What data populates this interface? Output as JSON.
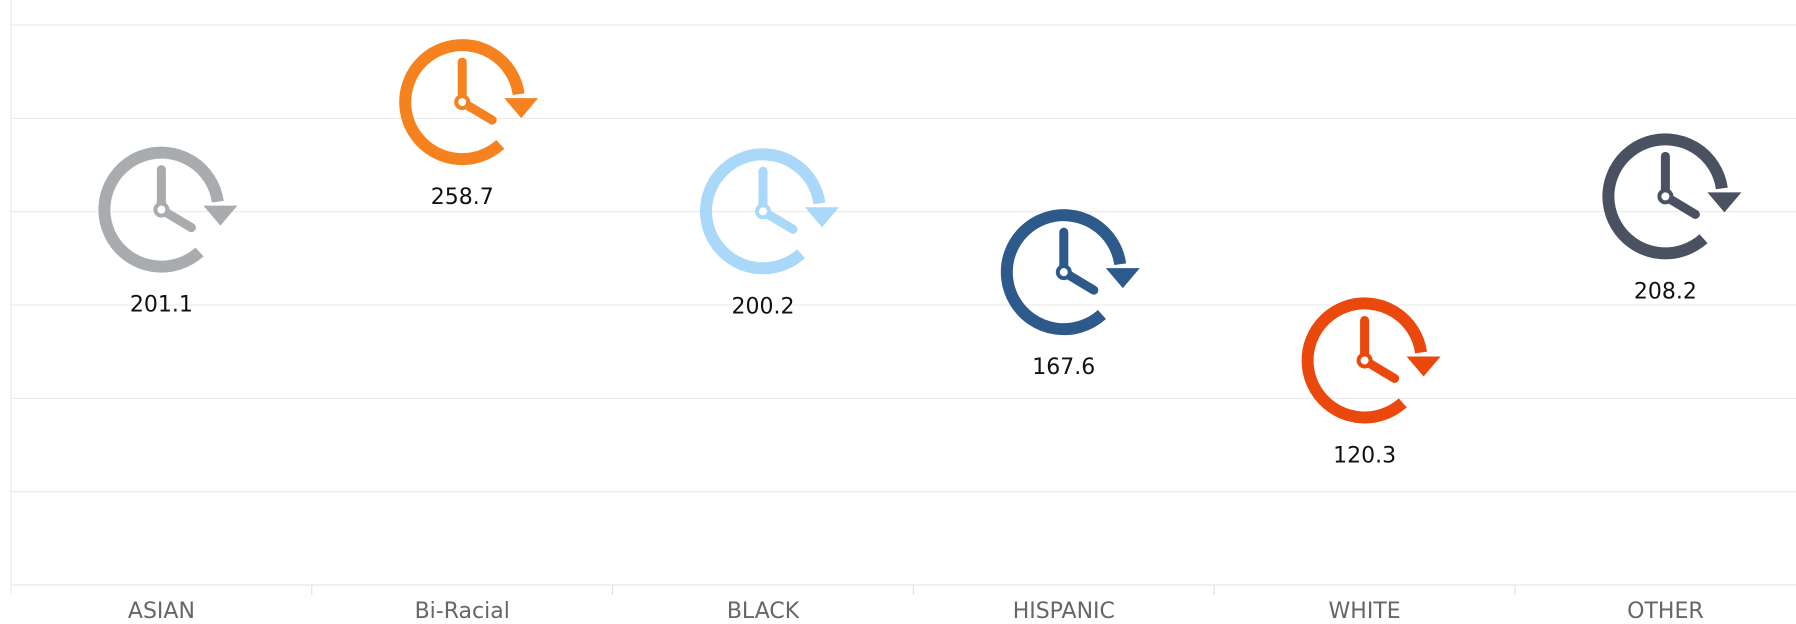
{
  "chart_data": {
    "type": "icon-scatter",
    "categories": [
      "ASIAN",
      "Bi-Racial",
      "BLACK",
      "HISPANIC",
      "WHITE",
      "OTHER"
    ],
    "values": [
      201.1,
      258.7,
      200.2,
      167.6,
      120.3,
      208.2
    ],
    "colors": [
      "#a8acae",
      "#f5821f",
      "#aad8f8",
      "#2d5a8b",
      "#ea480c",
      "#4a5160"
    ],
    "ylim": [
      0,
      300
    ],
    "yticks": [
      0,
      50,
      100,
      150,
      200,
      250,
      300
    ],
    "grid": true
  }
}
